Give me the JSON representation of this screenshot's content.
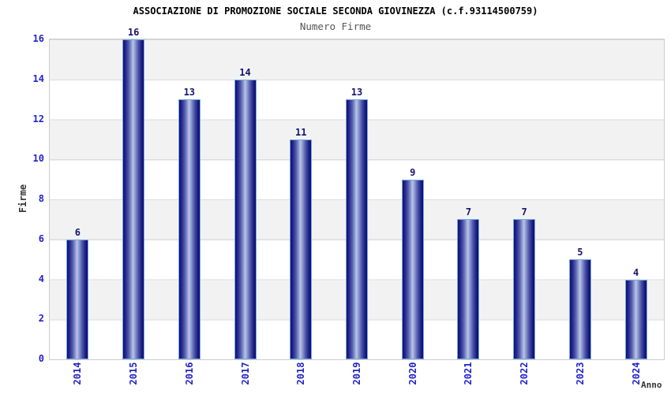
{
  "chart_data": {
    "type": "bar",
    "title": "ASSOCIAZIONE DI PROMOZIONE SOCIALE SECONDA GIOVINEZZA (c.f.93114500759)",
    "subtitle": "Numero Firme",
    "xlabel": "Anno",
    "ylabel": "Firme",
    "categories": [
      "2014",
      "2015",
      "2016",
      "2017",
      "2018",
      "2019",
      "2020",
      "2021",
      "2022",
      "2023",
      "2024"
    ],
    "values": [
      6,
      16,
      13,
      14,
      11,
      13,
      9,
      7,
      7,
      5,
      4
    ],
    "ylim": [
      0,
      16
    ],
    "ytick_step": 2,
    "grid": true,
    "legend_position": "none",
    "plot_background": "alternating horizontal bands every 2 units"
  },
  "colors": {
    "background": "#ffffff",
    "title": "#000000",
    "subtitle": "#555555",
    "axis_title": "#333333",
    "tick_label": "#2323c8",
    "value_label": "#15156e",
    "bar_border": "#74abdf",
    "bar_dark": "#10106c",
    "bar_highlight": "#bac4e8",
    "band_gray": "#f2f2f2",
    "band_white": "#ffffff",
    "plot_border": "#cccccc",
    "gridline": "#dcdcdc"
  }
}
